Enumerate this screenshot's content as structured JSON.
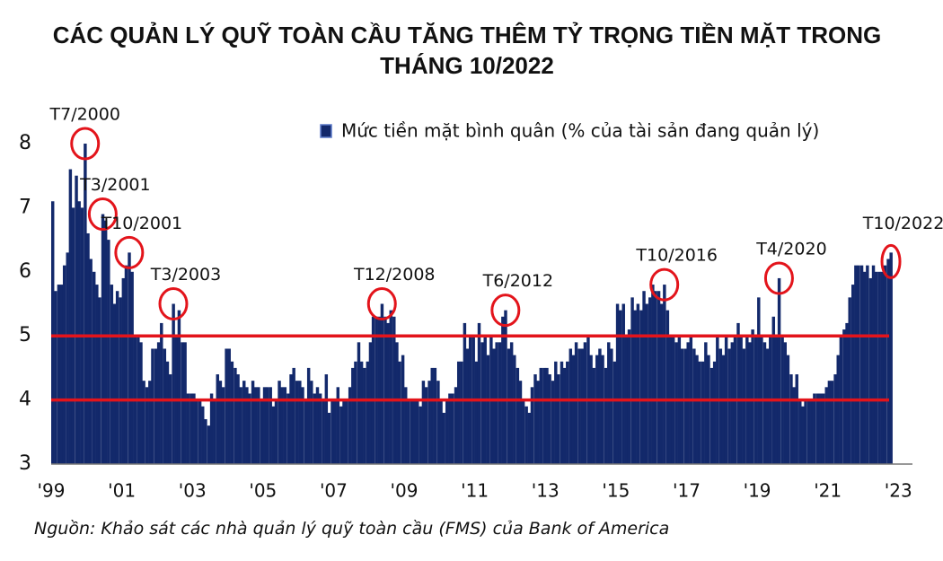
{
  "chart_data": {
    "type": "bar",
    "title": "CÁC QUẢN LÝ QUỸ TOÀN CẦU TĂNG THÊM TỶ TRỌNG TIỀN MẶT TRONG THÁNG 10/2022",
    "source": "Nguồn: Khảo sát các nhà quản lý quỹ toàn cầu (FMS) của Bank of America",
    "xlim": [
      1999,
      2023.4
    ],
    "xticks": [
      {
        "value": 1999,
        "label": "'99"
      },
      {
        "value": 2001,
        "label": "'01"
      },
      {
        "value": 2003,
        "label": "'03"
      },
      {
        "value": 2005,
        "label": "'05"
      },
      {
        "value": 2007,
        "label": "'07"
      },
      {
        "value": 2009,
        "label": "'09"
      },
      {
        "value": 2011,
        "label": "'11"
      },
      {
        "value": 2013,
        "label": "'13"
      },
      {
        "value": 2015,
        "label": "'15"
      },
      {
        "value": 2017,
        "label": "'17"
      },
      {
        "value": 2019,
        "label": "'19"
      },
      {
        "value": 2021,
        "label": "'21"
      },
      {
        "value": 2023,
        "label": "'23"
      }
    ],
    "ylim": [
      3,
      8
    ],
    "yticks": [
      3,
      4,
      5,
      6,
      7,
      8
    ],
    "reference_lines": [
      5,
      4
    ],
    "reference_line_color": "#e3141b",
    "annotations": [
      {
        "label": "T7/2000",
        "x": 1999.92
      },
      {
        "label": "T3/2001",
        "x": 2000.42
      },
      {
        "label": "T10/2001",
        "x": 2001.17
      },
      {
        "label": "T3/2003",
        "x": 2002.42
      },
      {
        "label": "T12/2008",
        "x": 2008.33
      },
      {
        "label": "T6/2012",
        "x": 2011.83
      },
      {
        "label": "T10/2016",
        "x": 2016.33
      },
      {
        "label": "T4/2020",
        "x": 2019.58
      },
      {
        "label": "T10/2022",
        "x": 2022.75
      }
    ],
    "x": [
      1999,
      1999.08,
      1999.17,
      1999.25,
      1999.33,
      1999.42,
      1999.5,
      1999.58,
      1999.67,
      1999.75,
      1999.83,
      1999.92,
      2000,
      2000.08,
      2000.17,
      2000.25,
      2000.33,
      2000.42,
      2000.5,
      2000.58,
      2000.67,
      2000.75,
      2000.83,
      2000.92,
      2001,
      2001.08,
      2001.17,
      2001.25,
      2001.33,
      2001.42,
      2001.5,
      2001.58,
      2001.67,
      2001.75,
      2001.83,
      2001.92,
      2002,
      2002.08,
      2002.17,
      2002.25,
      2002.33,
      2002.42,
      2002.5,
      2002.58,
      2002.67,
      2002.75,
      2002.83,
      2002.92,
      2003,
      2003.08,
      2003.17,
      2003.25,
      2003.33,
      2003.42,
      2003.5,
      2003.58,
      2003.67,
      2003.75,
      2003.83,
      2003.92,
      2004,
      2004.08,
      2004.17,
      2004.25,
      2004.33,
      2004.42,
      2004.5,
      2004.58,
      2004.67,
      2004.75,
      2004.83,
      2004.92,
      2005,
      2005.08,
      2005.17,
      2005.25,
      2005.33,
      2005.42,
      2005.5,
      2005.58,
      2005.67,
      2005.75,
      2005.83,
      2005.92,
      2006,
      2006.08,
      2006.17,
      2006.25,
      2006.33,
      2006.42,
      2006.5,
      2006.58,
      2006.67,
      2006.75,
      2006.83,
      2006.92,
      2007,
      2007.08,
      2007.17,
      2007.25,
      2007.33,
      2007.42,
      2007.5,
      2007.58,
      2007.67,
      2007.75,
      2007.83,
      2007.92,
      2008,
      2008.08,
      2008.17,
      2008.25,
      2008.33,
      2008.42,
      2008.5,
      2008.58,
      2008.67,
      2008.75,
      2008.83,
      2008.92,
      2009,
      2009.08,
      2009.17,
      2009.25,
      2009.33,
      2009.42,
      2009.5,
      2009.58,
      2009.67,
      2009.75,
      2009.83,
      2009.92,
      2010,
      2010.08,
      2010.17,
      2010.25,
      2010.33,
      2010.42,
      2010.5,
      2010.58,
      2010.67,
      2010.75,
      2010.83,
      2010.92,
      2011,
      2011.08,
      2011.17,
      2011.25,
      2011.33,
      2011.42,
      2011.5,
      2011.58,
      2011.67,
      2011.75,
      2011.83,
      2011.92,
      2012,
      2012.08,
      2012.17,
      2012.25,
      2012.33,
      2012.42,
      2012.5,
      2012.58,
      2012.67,
      2012.75,
      2012.83,
      2012.92,
      2013,
      2013.08,
      2013.17,
      2013.25,
      2013.33,
      2013.42,
      2013.5,
      2013.58,
      2013.67,
      2013.75,
      2013.83,
      2013.92,
      2014,
      2014.08,
      2014.17,
      2014.25,
      2014.33,
      2014.42,
      2014.5,
      2014.58,
      2014.67,
      2014.75,
      2014.83,
      2014.92,
      2015,
      2015.08,
      2015.17,
      2015.25,
      2015.33,
      2015.42,
      2015.5,
      2015.58,
      2015.67,
      2015.75,
      2015.83,
      2015.92,
      2016,
      2016.08,
      2016.17,
      2016.25,
      2016.33,
      2016.42,
      2016.5,
      2016.58,
      2016.67,
      2016.75,
      2016.83,
      2016.92,
      2017,
      2017.08,
      2017.17,
      2017.25,
      2017.33,
      2017.42,
      2017.5,
      2017.58,
      2017.67,
      2017.75,
      2017.83,
      2017.92,
      2018,
      2018.08,
      2018.17,
      2018.25,
      2018.33,
      2018.42,
      2018.5,
      2018.58,
      2018.67,
      2018.75,
      2018.83,
      2018.92,
      2019,
      2019.08,
      2019.17,
      2019.25,
      2019.33,
      2019.42,
      2019.5,
      2019.58,
      2019.67,
      2019.75,
      2019.83,
      2019.92,
      2020,
      2020.08,
      2020.17,
      2020.25,
      2020.33,
      2020.42,
      2020.5,
      2020.58,
      2020.67,
      2020.75,
      2020.83,
      2020.92,
      2021,
      2021.08,
      2021.17,
      2021.25,
      2021.33,
      2021.42,
      2021.5,
      2021.58,
      2021.67,
      2021.75,
      2021.83,
      2021.92,
      2022,
      2022.08,
      2022.17,
      2022.25,
      2022.33,
      2022.42,
      2022.5,
      2022.58,
      2022.67,
      2022.75
    ],
    "series": [
      {
        "name": "Mức tiền mặt bình quân (% của tài sản đang quản lý)",
        "color": "#13296b",
        "values": [
          7.1,
          5.7,
          5.8,
          5.8,
          6.1,
          6.3,
          7.6,
          7.0,
          7.5,
          7.1,
          7.0,
          8.0,
          6.6,
          6.2,
          6.0,
          5.8,
          5.6,
          6.9,
          6.8,
          6.5,
          5.8,
          5.5,
          5.7,
          5.6,
          5.9,
          6.1,
          6.3,
          6.0,
          5.0,
          5.0,
          4.9,
          4.3,
          4.2,
          4.3,
          4.8,
          4.8,
          4.9,
          5.2,
          4.8,
          4.6,
          4.4,
          5.5,
          5.0,
          5.4,
          4.9,
          4.9,
          4.1,
          4.1,
          4.1,
          4.0,
          4.0,
          3.9,
          3.7,
          3.6,
          4.1,
          4.0,
          4.4,
          4.3,
          4.2,
          4.8,
          4.8,
          4.6,
          4.5,
          4.4,
          4.2,
          4.3,
          4.2,
          4.1,
          4.3,
          4.2,
          4.2,
          4.0,
          4.2,
          4.2,
          4.2,
          3.9,
          4.0,
          4.3,
          4.2,
          4.2,
          4.1,
          4.4,
          4.5,
          4.3,
          4.3,
          4.2,
          4.0,
          4.5,
          4.3,
          4.1,
          4.2,
          4.1,
          4.0,
          4.4,
          3.8,
          4.0,
          4.0,
          4.2,
          3.9,
          4.0,
          4.0,
          4.2,
          4.5,
          4.6,
          4.9,
          4.6,
          4.5,
          4.6,
          4.9,
          5.3,
          5.3,
          5.3,
          5.5,
          5.3,
          5.2,
          5.4,
          5.3,
          4.9,
          4.6,
          4.7,
          4.2,
          4.0,
          4.0,
          4.0,
          4.0,
          3.9,
          4.3,
          4.2,
          4.3,
          4.5,
          4.5,
          4.3,
          4.0,
          3.8,
          4.0,
          4.1,
          4.1,
          4.2,
          4.6,
          4.6,
          5.2,
          4.8,
          5.0,
          5.0,
          4.6,
          5.2,
          4.9,
          5.0,
          4.7,
          5.0,
          4.8,
          4.9,
          4.9,
          5.3,
          5.4,
          4.8,
          4.9,
          4.7,
          4.5,
          4.3,
          4.0,
          3.9,
          3.8,
          4.2,
          4.4,
          4.3,
          4.5,
          4.5,
          4.5,
          4.4,
          4.3,
          4.6,
          4.4,
          4.6,
          4.5,
          4.6,
          4.8,
          4.7,
          4.9,
          4.8,
          4.8,
          4.9,
          5.0,
          4.7,
          4.5,
          4.7,
          4.8,
          4.7,
          4.5,
          4.9,
          4.8,
          4.6,
          5.5,
          5.4,
          5.5,
          5.0,
          5.1,
          5.6,
          5.4,
          5.5,
          5.4,
          5.7,
          5.5,
          5.6,
          5.8,
          5.7,
          5.7,
          5.5,
          5.8,
          5.4,
          5.0,
          5.0,
          4.9,
          5.0,
          4.8,
          4.8,
          4.9,
          5.0,
          4.8,
          4.7,
          4.6,
          4.6,
          4.9,
          4.7,
          4.5,
          4.6,
          5.0,
          4.8,
          4.7,
          5.0,
          4.8,
          4.9,
          5.0,
          5.2,
          5.0,
          4.8,
          5.0,
          4.9,
          5.1,
          5.0,
          5.6,
          5.0,
          4.9,
          4.8,
          5.0,
          5.3,
          5.0,
          5.9,
          5.0,
          4.9,
          4.7,
          4.4,
          4.2,
          4.4,
          4.0,
          3.9,
          4.0,
          4.0,
          4.0,
          4.1,
          4.1,
          4.1,
          4.1,
          4.2,
          4.3,
          4.3,
          4.4,
          4.7,
          5.0,
          5.1,
          5.2,
          5.6,
          5.8,
          6.1,
          6.1,
          6.1,
          6.0,
          6.1,
          5.9,
          6.1,
          6.0,
          6.0,
          6.0,
          6.1,
          6.2,
          6.3
        ]
      }
    ]
  }
}
